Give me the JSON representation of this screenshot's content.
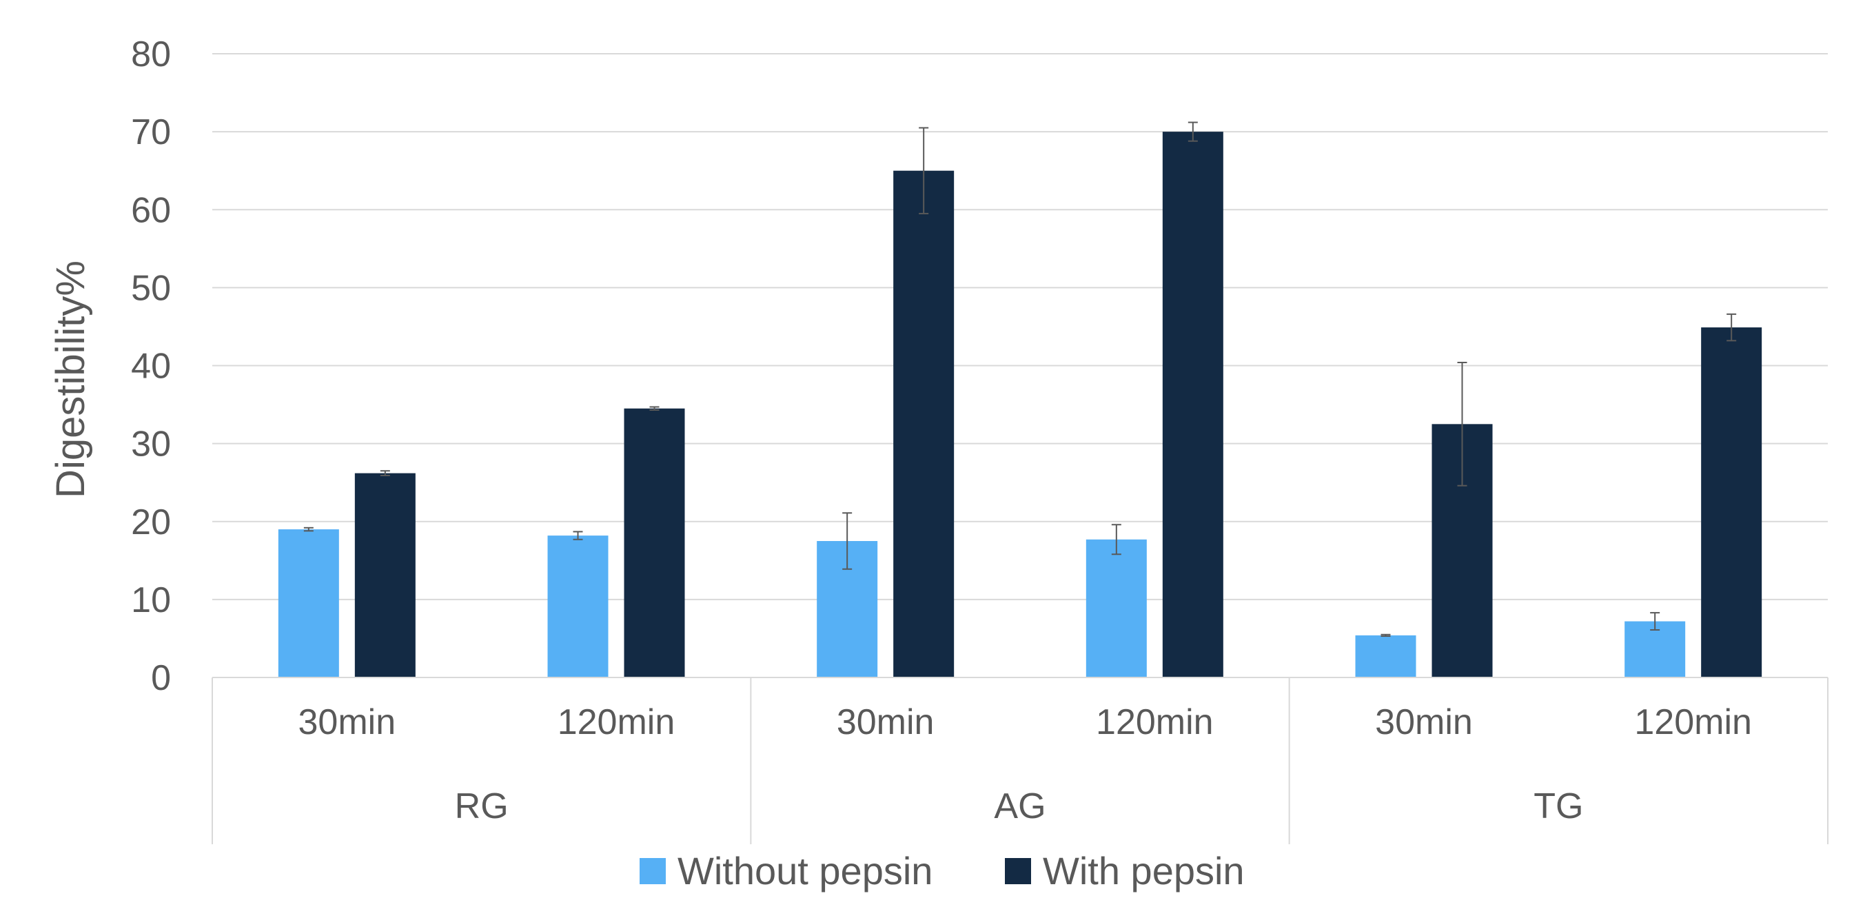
{
  "chart_data": {
    "type": "bar",
    "ylabel": "Digestibility%",
    "xlabel": "",
    "ylim": [
      0,
      80
    ],
    "yticks": [
      0,
      10,
      20,
      30,
      40,
      50,
      60,
      70,
      80
    ],
    "grid": true,
    "legend_position": "bottom",
    "groups": [
      "RG",
      "AG",
      "TG"
    ],
    "categories": [
      "30min",
      "120min",
      "30min",
      "120min",
      "30min",
      "120min"
    ],
    "category_group": [
      0,
      0,
      1,
      1,
      2,
      2
    ],
    "series": [
      {
        "name": "Without pepsin",
        "color": "#56B0F5",
        "values": [
          19.0,
          18.2,
          17.5,
          17.7,
          5.4,
          7.2
        ],
        "errors": [
          0.2,
          0.5,
          3.6,
          1.9,
          0.1,
          1.1
        ]
      },
      {
        "name": "With pepsin",
        "color": "#132A44",
        "values": [
          26.2,
          34.5,
          65.0,
          70.0,
          32.5,
          44.9
        ],
        "errors": [
          0.3,
          0.2,
          5.5,
          1.2,
          7.9,
          1.7
        ]
      }
    ]
  }
}
